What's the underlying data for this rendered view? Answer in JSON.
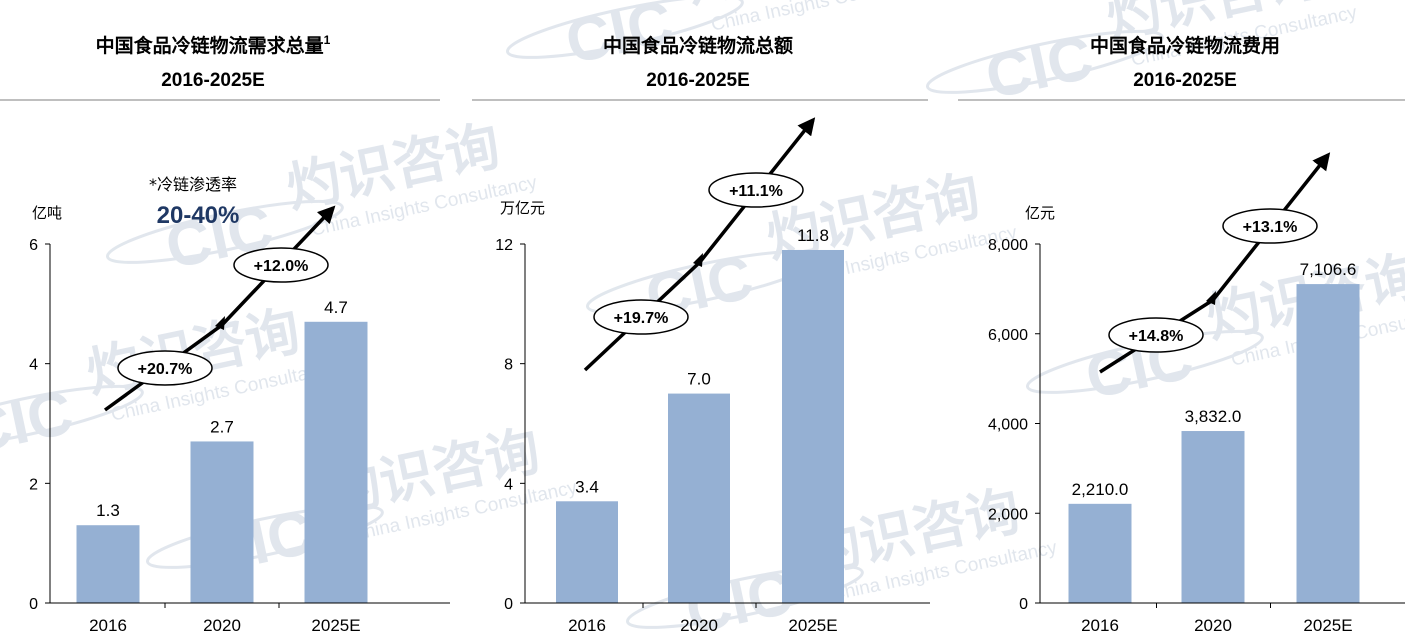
{
  "theme": {
    "bar_color": "#95b0d3",
    "axis_color": "#000000",
    "pen_value_color": "#1f3864",
    "watermark_color": "#c9d3df"
  },
  "watermark": {
    "logo": "CIC",
    "cn": "灼识咨询",
    "en": "China Insights Consultancy"
  },
  "chart_data": [
    {
      "type": "bar",
      "title": "中国食品冷链物流需求总量",
      "title_sup": "1",
      "subtitle": "2016-2025E",
      "ylabel": "亿吨",
      "categories": [
        "2016",
        "2020",
        "2025E"
      ],
      "values": [
        1.3,
        2.7,
        4.7
      ],
      "value_labels": [
        "1.3",
        "2.7",
        "4.7"
      ],
      "ylim": [
        0,
        6
      ],
      "yticks": [
        0,
        2,
        4,
        6
      ],
      "ytick_labels": [
        "0",
        "2",
        "4",
        "6"
      ],
      "growth_labels": [
        "+20.7%",
        "+12.0%"
      ],
      "annotation": {
        "label": "*冷链渗透率",
        "value": "20-40%"
      },
      "grid": false
    },
    {
      "type": "bar",
      "title": "中国食品冷链物流总额",
      "subtitle": "2016-2025E",
      "ylabel": "万亿元",
      "categories": [
        "2016",
        "2020",
        "2025E"
      ],
      "values": [
        3.4,
        7.0,
        11.8
      ],
      "value_labels": [
        "3.4",
        "7.0",
        "11.8"
      ],
      "ylim": [
        0,
        12
      ],
      "yticks": [
        0,
        4,
        8,
        12
      ],
      "ytick_labels": [
        "0",
        "4",
        "8",
        "12"
      ],
      "growth_labels": [
        "+19.7%",
        "+11.1%"
      ],
      "grid": false
    },
    {
      "type": "bar",
      "title": "中国食品冷链物流费用",
      "subtitle": "2016-2025E",
      "ylabel": "亿元",
      "categories": [
        "2016",
        "2020",
        "2025E"
      ],
      "values": [
        2210.0,
        3832.0,
        7106.6
      ],
      "value_labels": [
        "2,210.0",
        "3,832.0",
        "7,106.6"
      ],
      "ylim": [
        0,
        8000
      ],
      "yticks": [
        0,
        2000,
        4000,
        6000,
        8000
      ],
      "ytick_labels": [
        "0",
        "2,000",
        "4,000",
        "6,000",
        "8,000"
      ],
      "growth_labels": [
        "+14.8%",
        "+13.1%"
      ],
      "grid": false
    }
  ]
}
